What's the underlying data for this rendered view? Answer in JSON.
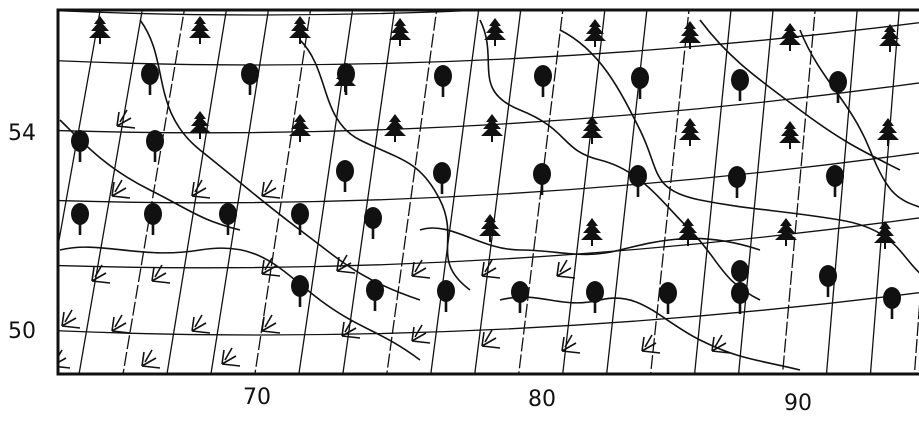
{
  "map": {
    "latitude_labels": [
      "54",
      "50"
    ],
    "longitude_labels": [
      "70",
      "80",
      "90"
    ]
  }
}
